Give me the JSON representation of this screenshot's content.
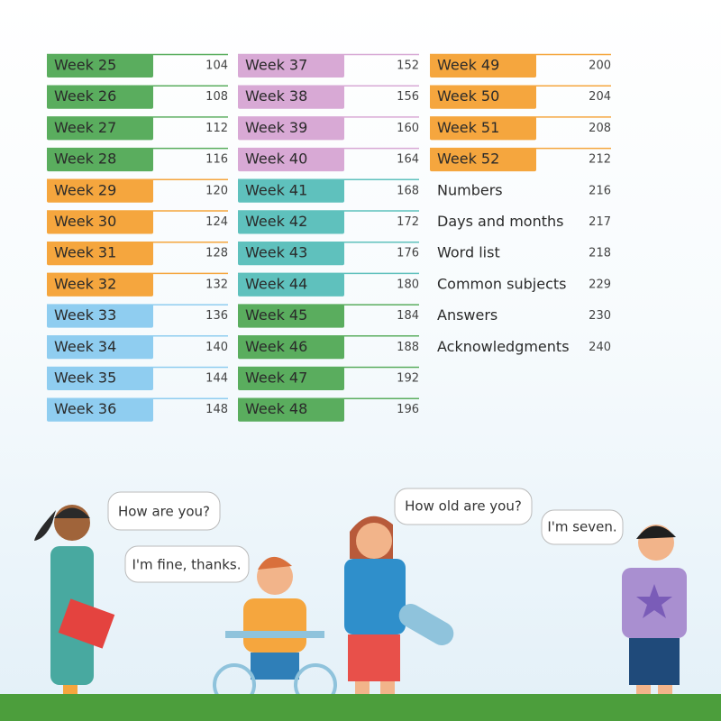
{
  "columns": [
    {
      "entries": [
        {
          "label": "Week 25",
          "page": 104,
          "color": "#5aad5e"
        },
        {
          "label": "Week 26",
          "page": 108,
          "color": "#5aad5e"
        },
        {
          "label": "Week 27",
          "page": 112,
          "color": "#5aad5e"
        },
        {
          "label": "Week 28",
          "page": 116,
          "color": "#5aad5e"
        },
        {
          "label": "Week 29",
          "page": 120,
          "color": "#f5a63e"
        },
        {
          "label": "Week 30",
          "page": 124,
          "color": "#f5a63e"
        },
        {
          "label": "Week 31",
          "page": 128,
          "color": "#f5a63e"
        },
        {
          "label": "Week 32",
          "page": 132,
          "color": "#f5a63e"
        },
        {
          "label": "Week 33",
          "page": 136,
          "color": "#8fcdf0"
        },
        {
          "label": "Week 34",
          "page": 140,
          "color": "#8fcdf0"
        },
        {
          "label": "Week 35",
          "page": 144,
          "color": "#8fcdf0"
        },
        {
          "label": "Week 36",
          "page": 148,
          "color": "#8fcdf0"
        }
      ]
    },
    {
      "entries": [
        {
          "label": "Week 37",
          "page": 152,
          "color": "#d8a9d5"
        },
        {
          "label": "Week 38",
          "page": 156,
          "color": "#d8a9d5"
        },
        {
          "label": "Week 39",
          "page": 160,
          "color": "#d8a9d5"
        },
        {
          "label": "Week 40",
          "page": 164,
          "color": "#d8a9d5"
        },
        {
          "label": "Week 41",
          "page": 168,
          "color": "#5fc1bd"
        },
        {
          "label": "Week 42",
          "page": 172,
          "color": "#5fc1bd"
        },
        {
          "label": "Week 43",
          "page": 176,
          "color": "#5fc1bd"
        },
        {
          "label": "Week 44",
          "page": 180,
          "color": "#5fc1bd"
        },
        {
          "label": "Week 45",
          "page": 184,
          "color": "#5aad5e"
        },
        {
          "label": "Week 46",
          "page": 188,
          "color": "#5aad5e"
        },
        {
          "label": "Week 47",
          "page": 192,
          "color": "#5aad5e"
        },
        {
          "label": "Week 48",
          "page": 196,
          "color": "#5aad5e"
        }
      ]
    },
    {
      "entries": [
        {
          "label": "Week 49",
          "page": 200,
          "color": "#f5a63e"
        },
        {
          "label": "Week 50",
          "page": 204,
          "color": "#f5a63e"
        },
        {
          "label": "Week 51",
          "page": 208,
          "color": "#f5a63e"
        },
        {
          "label": "Week 52",
          "page": 212,
          "color": "#f5a63e"
        },
        {
          "label": "Numbers",
          "page": 216
        },
        {
          "label": "Days and months",
          "page": 217
        },
        {
          "label": "Word list",
          "page": 218
        },
        {
          "label": "Common subjects",
          "page": 229
        },
        {
          "label": "Answers",
          "page": 230
        },
        {
          "label": "Acknowledgments",
          "page": 240
        }
      ]
    }
  ],
  "bubbles": [
    "How are you?",
    "I'm fine, thanks.",
    "How old are you?",
    "I'm seven."
  ]
}
